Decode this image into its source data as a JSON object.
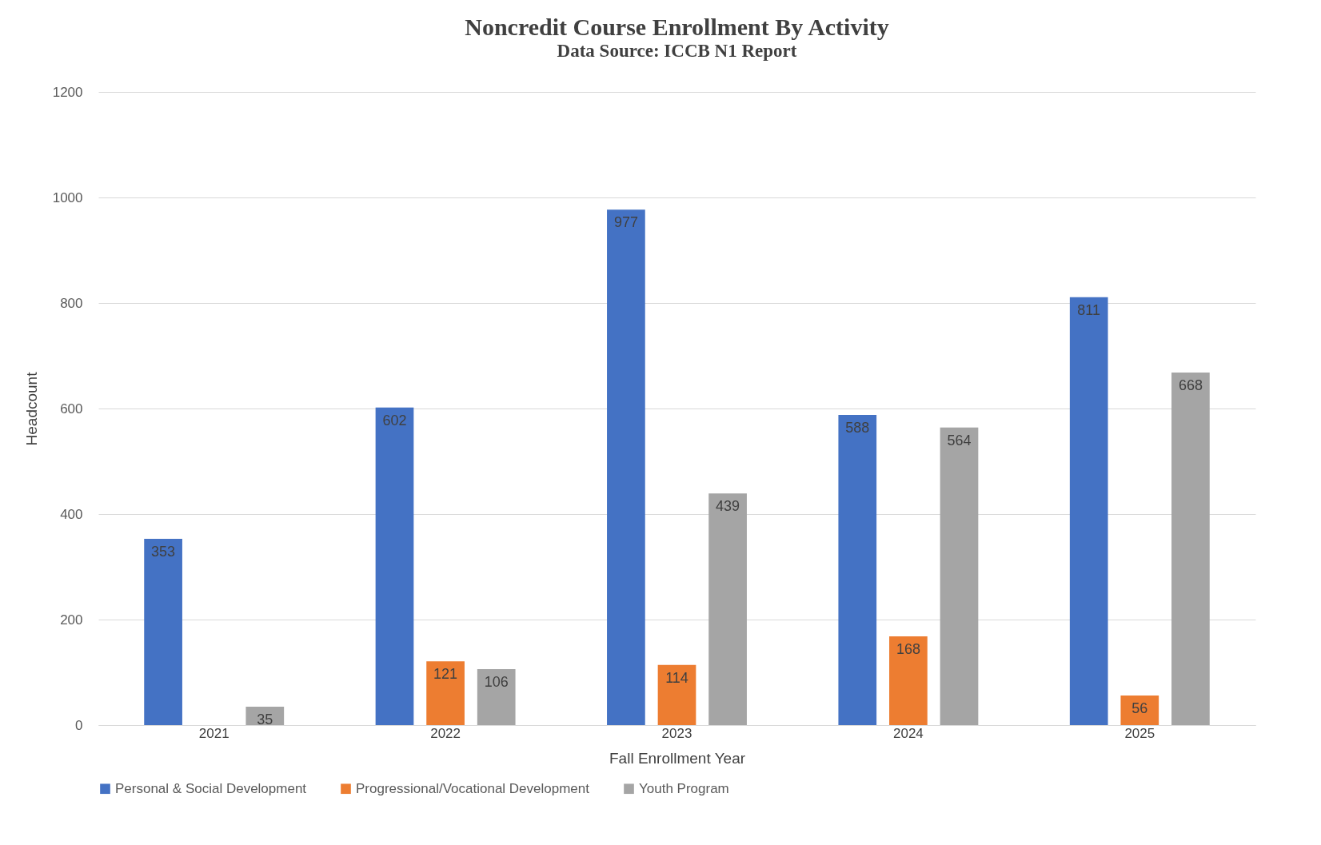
{
  "chart_data": {
    "type": "bar",
    "title": "Noncredit Course Enrollment By Activity",
    "subtitle": "Data Source: ICCB N1 Report",
    "xlabel": "Fall Enrollment Year",
    "ylabel": "Headcount",
    "categories": [
      "2021",
      "2022",
      "2023",
      "2024",
      "2025"
    ],
    "series": [
      {
        "name": "Personal & Social Development",
        "color": "#4472c4",
        "values": [
          353,
          602,
          977,
          588,
          811
        ]
      },
      {
        "name": "Progressional/Vocational Development",
        "color": "#ed7d31",
        "values": [
          null,
          121,
          114,
          168,
          56
        ]
      },
      {
        "name": "Youth Program",
        "color": "#a5a5a5",
        "values": [
          35,
          106,
          439,
          564,
          668
        ]
      }
    ],
    "ylim": [
      0,
      1200
    ],
    "yticks": [
      0,
      200,
      400,
      600,
      800,
      1000,
      1200
    ],
    "grid": "y",
    "legend": "bottom",
    "data_labels": true
  }
}
